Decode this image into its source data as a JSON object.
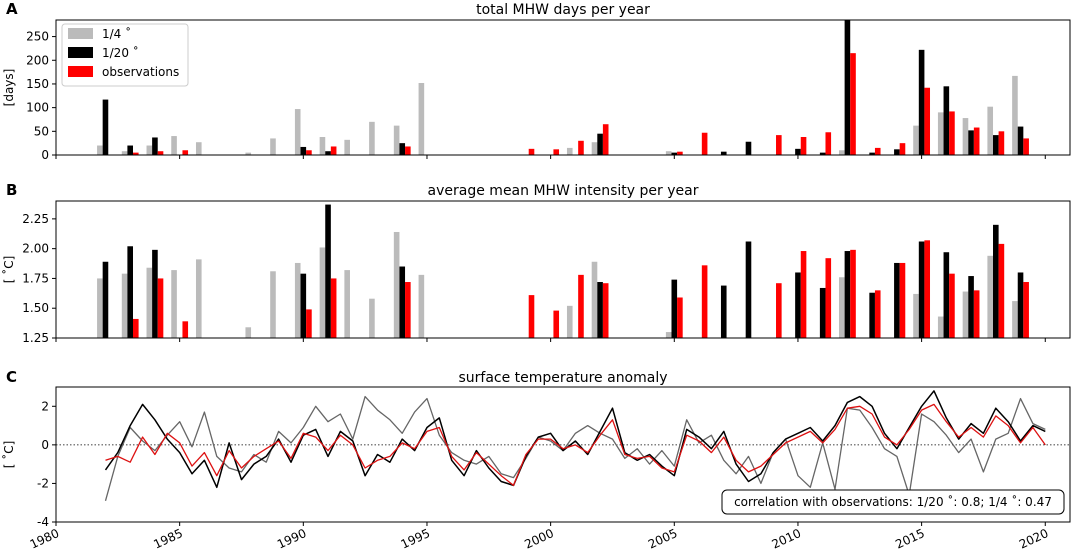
{
  "colors": {
    "quarter": "#bbbbbb",
    "twentieth": "#000000",
    "obs": "#ff0000",
    "quarter_line": "#666666",
    "obs_line": "#dd1111"
  },
  "chart_data": [
    {
      "panel": "A",
      "type": "bar",
      "title": "total MHW days per year",
      "ylabel": "[days]",
      "ylim": [
        0,
        285
      ],
      "yticks": [
        0,
        50,
        100,
        150,
        200,
        250
      ],
      "legend": {
        "placement": "top-left",
        "entries": [
          "1/4$^\\circ$",
          "1/20$^\\circ$",
          "observations"
        ],
        "labels": [
          "1/4 ˚",
          "1/20 ˚",
          "observations"
        ]
      },
      "x": [
        1982,
        1983,
        1984,
        1985,
        1986,
        1987,
        1988,
        1989,
        1990,
        1991,
        1992,
        1993,
        1994,
        1995,
        1996,
        1997,
        1998,
        1999,
        2000,
        2001,
        2002,
        2003,
        2004,
        2005,
        2006,
        2007,
        2008,
        2009,
        2010,
        2011,
        2012,
        2013,
        2014,
        2015,
        2016,
        2017,
        2018,
        2019
      ],
      "series": [
        {
          "name": "1/4 ˚",
          "key": "quarter",
          "values": [
            20,
            8,
            20,
            40,
            27,
            0,
            5,
            35,
            97,
            38,
            32,
            70,
            62,
            152,
            0,
            0,
            0,
            0,
            0,
            15,
            27,
            0,
            0,
            8,
            0,
            0,
            0,
            0,
            0,
            0,
            10,
            0,
            0,
            62,
            90,
            78,
            102,
            167
          ]
        },
        {
          "name": "1/20 ˚",
          "key": "twentieth",
          "values": [
            117,
            20,
            37,
            0,
            0,
            0,
            0,
            0,
            17,
            8,
            0,
            0,
            25,
            0,
            0,
            0,
            0,
            0,
            0,
            0,
            45,
            0,
            0,
            5,
            0,
            7,
            28,
            0,
            13,
            5,
            285,
            5,
            12,
            222,
            145,
            52,
            42,
            60
          ]
        },
        {
          "name": "observations",
          "key": "obs",
          "values": [
            0,
            5,
            8,
            10,
            0,
            0,
            0,
            0,
            10,
            18,
            0,
            0,
            18,
            0,
            0,
            0,
            0,
            13,
            12,
            30,
            65,
            0,
            0,
            7,
            47,
            0,
            0,
            42,
            38,
            48,
            215,
            15,
            25,
            142,
            92,
            58,
            50,
            35
          ]
        }
      ]
    },
    {
      "panel": "B",
      "type": "bar",
      "title": "average mean MHW intensity per year",
      "ylabel": "[ ˚C]",
      "ylim": [
        1.25,
        2.4
      ],
      "yticks": [
        1.25,
        1.5,
        1.75,
        2.0,
        2.25
      ],
      "ytick_labels": [
        "1.25",
        "1.50",
        "1.75",
        "2.00",
        "2.25"
      ],
      "x": [
        1982,
        1983,
        1984,
        1985,
        1986,
        1987,
        1988,
        1989,
        1990,
        1991,
        1992,
        1993,
        1994,
        1995,
        1996,
        1997,
        1998,
        1999,
        2000,
        2001,
        2002,
        2003,
        2004,
        2005,
        2006,
        2007,
        2008,
        2009,
        2010,
        2011,
        2012,
        2013,
        2014,
        2015,
        2016,
        2017,
        2018,
        2019
      ],
      "series": [
        {
          "name": "1/4 ˚",
          "key": "quarter",
          "values": [
            1.75,
            1.79,
            1.84,
            1.82,
            1.91,
            null,
            1.34,
            1.81,
            1.88,
            2.01,
            1.82,
            1.58,
            2.14,
            1.78,
            null,
            null,
            null,
            null,
            null,
            1.52,
            1.89,
            null,
            null,
            1.3,
            null,
            null,
            null,
            null,
            null,
            null,
            1.76,
            null,
            null,
            1.62,
            1.43,
            1.64,
            1.94,
            1.56
          ]
        },
        {
          "name": "1/20 ˚",
          "key": "twentieth",
          "values": [
            1.89,
            2.02,
            1.99,
            null,
            null,
            null,
            null,
            null,
            1.79,
            2.37,
            null,
            null,
            1.85,
            null,
            null,
            null,
            null,
            null,
            null,
            null,
            1.72,
            null,
            null,
            1.74,
            null,
            1.69,
            2.06,
            null,
            1.8,
            1.67,
            1.98,
            1.63,
            1.88,
            2.06,
            1.97,
            1.77,
            2.2,
            1.8
          ]
        },
        {
          "name": "observations",
          "key": "obs",
          "values": [
            null,
            1.41,
            1.75,
            1.39,
            null,
            null,
            null,
            null,
            1.49,
            1.75,
            null,
            null,
            1.72,
            null,
            null,
            null,
            null,
            1.61,
            1.48,
            1.78,
            1.71,
            null,
            null,
            1.59,
            1.86,
            null,
            null,
            1.71,
            1.98,
            1.92,
            1.99,
            1.65,
            1.88,
            2.07,
            1.79,
            1.65,
            2.04,
            1.72
          ]
        }
      ]
    },
    {
      "panel": "C",
      "type": "line",
      "title": "surface temperature anomaly",
      "ylabel": "[ ˚C]",
      "ylim": [
        -4,
        3
      ],
      "yticks": [
        -4,
        -2,
        0,
        2
      ],
      "xlim": [
        1980,
        2021
      ],
      "xticks": [
        1980,
        1985,
        1990,
        1995,
        2000,
        2005,
        2010,
        2015,
        2020
      ],
      "reference_line": 0,
      "annotation": "correlation with observations: 1/20 ˚: 0.8; 1/4 ˚: 0.47",
      "series": [
        {
          "name": "1/4 ˚",
          "key": "quarter_line",
          "x": [
            1982.0,
            1982.5,
            1983.0,
            1983.5,
            1984.0,
            1984.5,
            1985.0,
            1985.5,
            1986.0,
            1986.5,
            1987.0,
            1987.5,
            1988.0,
            1988.5,
            1989.0,
            1989.5,
            1990.0,
            1990.5,
            1991.0,
            1991.5,
            1992.0,
            1992.5,
            1993.0,
            1993.5,
            1994.0,
            1994.5,
            1995.0,
            1995.5,
            1996.0,
            1996.5,
            1997.0,
            1997.5,
            1998.0,
            1998.5,
            1999.0,
            1999.5,
            2000.0,
            2000.5,
            2001.0,
            2001.5,
            2002.0,
            2002.5,
            2003.0,
            2003.5,
            2004.0,
            2004.5,
            2005.0,
            2005.5,
            2006.0,
            2006.5,
            2007.0,
            2007.5,
            2008.0,
            2008.5,
            2009.0,
            2009.5,
            2010.0,
            2010.5,
            2011.0,
            2011.5,
            2012.0,
            2012.5,
            2013.0,
            2013.5,
            2014.0,
            2014.5,
            2015.0,
            2015.5,
            2016.0,
            2016.5,
            2017.0,
            2017.5,
            2018.0,
            2018.5,
            2019.0,
            2019.5,
            2020.0
          ],
          "y": [
            -2.9,
            -0.6,
            0.9,
            0.2,
            -0.3,
            0.5,
            1.2,
            -0.1,
            1.7,
            -0.6,
            -1.2,
            -1.4,
            -0.5,
            -0.9,
            0.7,
            0.1,
            0.9,
            2.0,
            1.2,
            1.6,
            0.3,
            2.5,
            1.8,
            1.3,
            0.6,
            1.7,
            2.4,
            0.5,
            -0.4,
            -0.8,
            -1.0,
            -0.6,
            -1.5,
            -1.7,
            -0.7,
            0.4,
            0.2,
            -0.3,
            0.6,
            1.0,
            0.6,
            0.3,
            -0.7,
            -0.2,
            -1.0,
            -0.3,
            -1.1,
            1.3,
            0.1,
            0.5,
            -0.8,
            -1.5,
            -0.6,
            -2.0,
            -0.4,
            0.3,
            -1.6,
            -2.2,
            0.1,
            -2.3,
            1.9,
            1.8,
            0.9,
            -0.2,
            -0.6,
            -2.6,
            1.6,
            1.2,
            0.5,
            -0.4,
            0.3,
            -1.4,
            0.3,
            0.6,
            2.4,
            1.1,
            0.8
          ]
        },
        {
          "name": "1/20 ˚",
          "key": "twentieth",
          "x": [
            1982.0,
            1982.5,
            1983.0,
            1983.5,
            1984.0,
            1984.5,
            1985.0,
            1985.5,
            1986.0,
            1986.5,
            1987.0,
            1987.5,
            1988.0,
            1988.5,
            1989.0,
            1989.5,
            1990.0,
            1990.5,
            1991.0,
            1991.5,
            1992.0,
            1992.5,
            1993.0,
            1993.5,
            1994.0,
            1994.5,
            1995.0,
            1995.5,
            1996.0,
            1996.5,
            1997.0,
            1997.5,
            1998.0,
            1998.5,
            1999.0,
            1999.5,
            2000.0,
            2000.5,
            2001.0,
            2001.5,
            2002.0,
            2002.5,
            2003.0,
            2003.5,
            2004.0,
            2004.5,
            2005.0,
            2005.5,
            2006.0,
            2006.5,
            2007.0,
            2007.5,
            2008.0,
            2008.5,
            2009.0,
            2009.5,
            2010.0,
            2010.5,
            2011.0,
            2011.5,
            2012.0,
            2012.5,
            2013.0,
            2013.5,
            2014.0,
            2014.5,
            2015.0,
            2015.5,
            2016.0,
            2016.5,
            2017.0,
            2017.5,
            2018.0,
            2018.5,
            2019.0,
            2019.5,
            2020.0
          ],
          "y": [
            -1.3,
            -0.4,
            1.0,
            2.1,
            1.3,
            0.3,
            -0.4,
            -1.5,
            -0.8,
            -2.2,
            0.1,
            -1.8,
            -1.0,
            -0.6,
            0.3,
            -0.9,
            0.5,
            0.8,
            -0.6,
            0.7,
            0.2,
            -1.6,
            -0.5,
            -0.9,
            0.3,
            -0.3,
            0.9,
            1.4,
            -0.8,
            -1.6,
            -0.3,
            -1.2,
            -1.9,
            -2.1,
            -0.6,
            0.4,
            0.6,
            -0.3,
            0.2,
            -0.5,
            0.7,
            1.9,
            -0.4,
            -0.8,
            -0.5,
            -1.1,
            -1.6,
            0.8,
            0.4,
            -0.2,
            0.7,
            -1.0,
            -1.9,
            -1.5,
            -0.4,
            0.3,
            0.6,
            0.9,
            0.2,
            1.0,
            2.2,
            2.5,
            2.0,
            0.6,
            -0.2,
            0.9,
            2.0,
            2.8,
            1.4,
            0.3,
            1.1,
            0.6,
            1.9,
            1.2,
            0.2,
            1.0,
            0.7
          ]
        },
        {
          "name": "observations",
          "key": "obs_line",
          "x": [
            1982.0,
            1982.5,
            1983.0,
            1983.5,
            1984.0,
            1984.5,
            1985.0,
            1985.5,
            1986.0,
            1986.5,
            1987.0,
            1987.5,
            1988.0,
            1988.5,
            1989.0,
            1989.5,
            1990.0,
            1990.5,
            1991.0,
            1991.5,
            1992.0,
            1992.5,
            1993.0,
            1993.5,
            1994.0,
            1994.5,
            1995.0,
            1995.5,
            1996.0,
            1996.5,
            1997.0,
            1997.5,
            1998.0,
            1998.5,
            1999.0,
            1999.5,
            2000.0,
            2000.5,
            2001.0,
            2001.5,
            2002.0,
            2002.5,
            2003.0,
            2003.5,
            2004.0,
            2004.5,
            2005.0,
            2005.5,
            2006.0,
            2006.5,
            2007.0,
            2007.5,
            2008.0,
            2008.5,
            2009.0,
            2009.5,
            2010.0,
            2010.5,
            2011.0,
            2011.5,
            2012.0,
            2012.5,
            2013.0,
            2013.5,
            2014.0,
            2014.5,
            2015.0,
            2015.5,
            2016.0,
            2016.5,
            2017.0,
            2017.5,
            2018.0,
            2018.5,
            2019.0,
            2019.5,
            2020.0
          ],
          "y": [
            -0.8,
            -0.6,
            -0.9,
            0.4,
            -0.5,
            0.6,
            0.1,
            -1.1,
            -0.4,
            -1.6,
            -0.3,
            -1.2,
            -0.6,
            -0.2,
            0.2,
            -0.7,
            0.6,
            0.4,
            -0.3,
            0.5,
            0.0,
            -1.2,
            -0.8,
            -0.6,
            0.1,
            -0.2,
            0.7,
            0.9,
            -0.6,
            -1.3,
            -0.4,
            -1.0,
            -1.6,
            -2.1,
            -0.5,
            0.3,
            0.3,
            -0.2,
            0.0,
            -0.4,
            0.5,
            1.3,
            -0.5,
            -0.7,
            -0.6,
            -1.2,
            -1.4,
            0.5,
            0.2,
            -0.4,
            0.4,
            -0.8,
            -1.4,
            -1.1,
            -0.5,
            0.1,
            0.4,
            0.7,
            0.1,
            0.8,
            1.9,
            2.0,
            1.6,
            0.4,
            0.0,
            0.8,
            1.8,
            2.1,
            1.2,
            0.4,
            0.9,
            0.4,
            1.5,
            1.0,
            0.1,
            0.9,
            0.0
          ]
        }
      ]
    }
  ]
}
